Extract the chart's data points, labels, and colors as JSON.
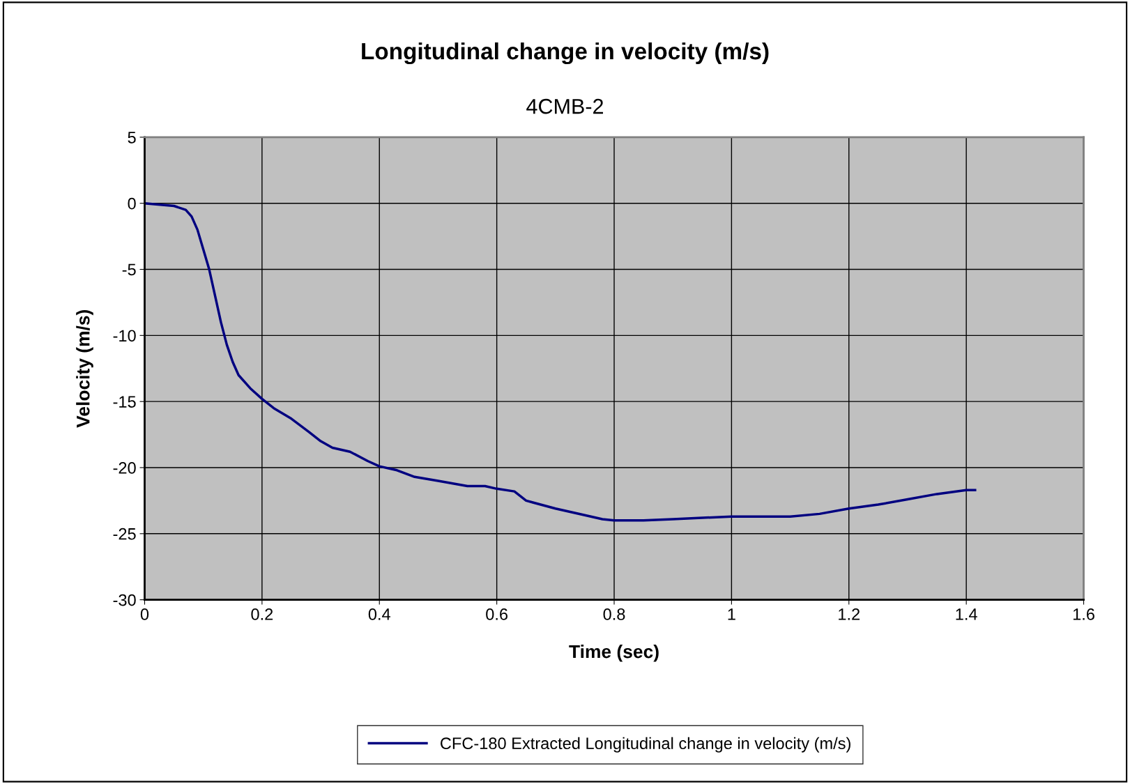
{
  "chart_data": {
    "type": "line",
    "title": "Longitudinal change in velocity (m/s)",
    "subtitle": "4CMB-2",
    "xlabel": "Time (sec)",
    "ylabel": "Velocity (m/s)",
    "x": [
      0,
      0.05,
      0.07,
      0.08,
      0.09,
      0.1,
      0.11,
      0.12,
      0.13,
      0.14,
      0.15,
      0.16,
      0.18,
      0.2,
      0.22,
      0.25,
      0.28,
      0.3,
      0.32,
      0.35,
      0.38,
      0.4,
      0.43,
      0.46,
      0.5,
      0.55,
      0.58,
      0.6,
      0.63,
      0.65,
      0.7,
      0.75,
      0.78,
      0.8,
      0.85,
      0.9,
      0.95,
      1.0,
      1.05,
      1.1,
      1.15,
      1.2,
      1.25,
      1.3,
      1.35,
      1.4,
      1.415
    ],
    "series": [
      {
        "name": "CFC-180 Extracted Longitudinal change in velocity (m/s)",
        "color": "#000080",
        "values": [
          0,
          -0.2,
          -0.5,
          -1,
          -2,
          -3.5,
          -5,
          -7,
          -9,
          -10.7,
          -12,
          -13,
          -14,
          -14.8,
          -15.5,
          -16.3,
          -17.3,
          -18,
          -18.5,
          -18.8,
          -19.5,
          -19.9,
          -20.2,
          -20.7,
          -21,
          -21.4,
          -21.4,
          -21.6,
          -21.8,
          -22.5,
          -23.1,
          -23.6,
          -23.9,
          -24,
          -24,
          -23.9,
          -23.8,
          -23.7,
          -23.7,
          -23.7,
          -23.5,
          -23.1,
          -22.8,
          -22.4,
          -22,
          -21.7,
          -21.7
        ]
      }
    ],
    "xlim": [
      0,
      1.6
    ],
    "xticks": [
      0,
      0.2,
      0.4,
      0.6,
      0.8,
      1,
      1.2,
      1.4,
      1.6
    ],
    "ylim": [
      -30,
      5
    ],
    "yticks": [
      -30,
      -25,
      -20,
      -15,
      -10,
      -5,
      0,
      5
    ],
    "grid": true,
    "legend": "bottom",
    "marker": "none",
    "line_style": "solid"
  }
}
